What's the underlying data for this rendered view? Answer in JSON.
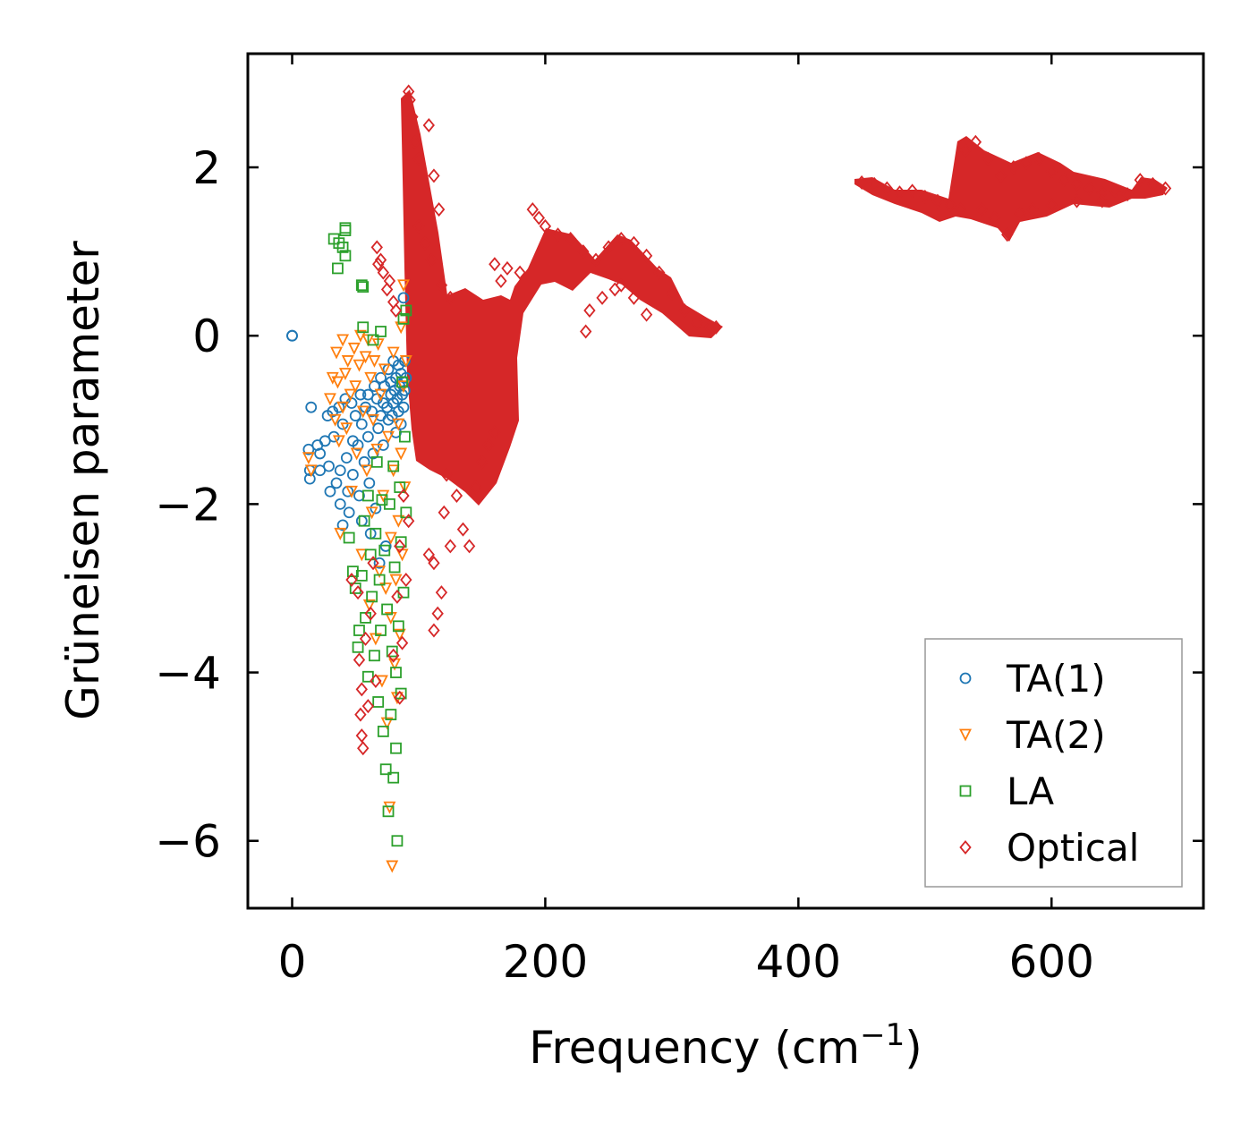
{
  "chart_data": {
    "type": "scatter",
    "title": "",
    "xlabel": "Frequency (cm",
    "xlabel_sup": "−1",
    "xlabel_end": ")",
    "ylabel": "Grüneisen parameter",
    "xlim": [
      -35,
      720
    ],
    "ylim": [
      -6.8,
      3.35
    ],
    "xticks": [
      0,
      200,
      400,
      600
    ],
    "xtick_labels": [
      "0",
      "200",
      "400",
      "600"
    ],
    "yticks": [
      -6,
      -4,
      -2,
      0,
      2
    ],
    "ytick_labels": [
      "−6",
      "−4",
      "−2",
      "0",
      "2"
    ],
    "grid": false,
    "legend_position": "lower-right",
    "series": [
      {
        "name": "TA(1)",
        "marker": "circle",
        "color": "#1f77b4",
        "points": [
          [
            0,
            0
          ],
          [
            0,
            0
          ],
          [
            15,
            -0.85
          ],
          [
            13,
            -1.35
          ],
          [
            14,
            -1.6
          ],
          [
            14,
            -1.7
          ],
          [
            20,
            -1.3
          ],
          [
            22,
            -1.4
          ],
          [
            22,
            -1.6
          ],
          [
            26,
            -1.25
          ],
          [
            28,
            -0.95
          ],
          [
            29,
            -1.55
          ],
          [
            30,
            -1.85
          ],
          [
            32,
            -0.9
          ],
          [
            33,
            -1.2
          ],
          [
            35,
            -1.75
          ],
          [
            37,
            -0.85
          ],
          [
            38,
            -1.6
          ],
          [
            38,
            -2.0
          ],
          [
            40,
            -2.25
          ],
          [
            40,
            -1.05
          ],
          [
            42,
            -0.75
          ],
          [
            43,
            -1.45
          ],
          [
            44,
            -1.85
          ],
          [
            45,
            -2.1
          ],
          [
            47,
            -0.8
          ],
          [
            48,
            -1.25
          ],
          [
            48,
            -1.65
          ],
          [
            50,
            -0.95
          ],
          [
            52,
            -1.3
          ],
          [
            53,
            -1.9
          ],
          [
            54,
            -0.7
          ],
          [
            55,
            -1.05
          ],
          [
            55,
            -2.2
          ],
          [
            57,
            -1.5
          ],
          [
            58,
            -0.85
          ],
          [
            60,
            -0.7
          ],
          [
            60,
            -1.2
          ],
          [
            61,
            -1.75
          ],
          [
            62,
            -2.35
          ],
          [
            63,
            -0.9
          ],
          [
            64,
            -1.4
          ],
          [
            65,
            -0.6
          ],
          [
            66,
            -2.05
          ],
          [
            67,
            -0.75
          ],
          [
            68,
            -1.1
          ],
          [
            69,
            -2.7
          ],
          [
            70,
            -0.5
          ],
          [
            70,
            -0.95
          ],
          [
            72,
            -1.3
          ],
          [
            72,
            -0.8
          ],
          [
            73,
            -0.6
          ],
          [
            74,
            -2.5
          ],
          [
            75,
            -0.85
          ],
          [
            76,
            -0.4
          ],
          [
            76,
            -1.0
          ],
          [
            78,
            -0.7
          ],
          [
            78,
            -0.55
          ],
          [
            79,
            -0.95
          ],
          [
            80,
            -0.3
          ],
          [
            80,
            -0.8
          ],
          [
            81,
            -0.65
          ],
          [
            82,
            -0.5
          ],
          [
            82,
            -1.15
          ],
          [
            83,
            -0.75
          ],
          [
            84,
            -0.35
          ],
          [
            84,
            -0.9
          ],
          [
            85,
            -0.6
          ],
          [
            86,
            -0.45
          ],
          [
            86,
            -1.05
          ],
          [
            87,
            -0.7
          ],
          [
            88,
            0.45
          ],
          [
            88,
            -0.55
          ],
          [
            88,
            -0.85
          ],
          [
            89,
            -0.3
          ],
          [
            89,
            -0.65
          ],
          [
            90,
            -0.5
          ]
        ]
      },
      {
        "name": "TA(2)",
        "marker": "triangle-down",
        "color": "#ff7f0e",
        "points": [
          [
            13,
            -1.45
          ],
          [
            15,
            -1.6
          ],
          [
            30,
            -0.75
          ],
          [
            32,
            -0.5
          ],
          [
            34,
            -1.0
          ],
          [
            35,
            -0.2
          ],
          [
            36,
            -0.55
          ],
          [
            37,
            -1.25
          ],
          [
            38,
            -2.35
          ],
          [
            40,
            -0.05
          ],
          [
            40,
            -0.85
          ],
          [
            42,
            -0.45
          ],
          [
            43,
            -1.1
          ],
          [
            44,
            -0.3
          ],
          [
            46,
            -0.7
          ],
          [
            47,
            -1.85
          ],
          [
            49,
            -0.15
          ],
          [
            50,
            -0.6
          ],
          [
            51,
            -1.4
          ],
          [
            53,
            -0.35
          ],
          [
            54,
            0.0
          ],
          [
            55,
            -2.6
          ],
          [
            56,
            -0.9
          ],
          [
            58,
            -0.25
          ],
          [
            59,
            -1.6
          ],
          [
            60,
            -0.05
          ],
          [
            61,
            -3.2
          ],
          [
            62,
            -0.5
          ],
          [
            63,
            -2.1
          ],
          [
            64,
            -1.0
          ],
          [
            65,
            -0.3
          ],
          [
            66,
            -3.6
          ],
          [
            67,
            -1.35
          ],
          [
            68,
            -0.1
          ],
          [
            69,
            -2.8
          ],
          [
            70,
            -0.7
          ],
          [
            71,
            -4.1
          ],
          [
            72,
            -1.9
          ],
          [
            73,
            -0.4
          ],
          [
            74,
            -3.0
          ],
          [
            75,
            -4.6
          ],
          [
            76,
            -1.2
          ],
          [
            77,
            -5.6
          ],
          [
            78,
            -2.4
          ],
          [
            78,
            -3.35
          ],
          [
            79,
            -6.3
          ],
          [
            80,
            -0.2
          ],
          [
            80,
            -1.6
          ],
          [
            81,
            -3.9
          ],
          [
            82,
            -2.9
          ],
          [
            83,
            -4.3
          ],
          [
            84,
            -1.05
          ],
          [
            84,
            -2.2
          ],
          [
            85,
            -3.55
          ],
          [
            86,
            0.1
          ],
          [
            86,
            -1.4
          ],
          [
            87,
            -2.6
          ],
          [
            88,
            0.6
          ],
          [
            88,
            -0.6
          ],
          [
            89,
            -1.8
          ],
          [
            90,
            -0.3
          ]
        ]
      },
      {
        "name": "LA",
        "marker": "square",
        "color": "#2ca02c",
        "points": [
          [
            33,
            1.15
          ],
          [
            36,
            0.8
          ],
          [
            37,
            1.1
          ],
          [
            40,
            1.05
          ],
          [
            42,
            0.95
          ],
          [
            42,
            1.25
          ],
          [
            42,
            1.28
          ],
          [
            55,
            0.6
          ],
          [
            56,
            0.58
          ],
          [
            45,
            -2.4
          ],
          [
            48,
            -2.8
          ],
          [
            50,
            -3.0
          ],
          [
            52,
            -3.7
          ],
          [
            53,
            -3.5
          ],
          [
            55,
            -2.85
          ],
          [
            56,
            0.1
          ],
          [
            57,
            -2.2
          ],
          [
            58,
            -3.35
          ],
          [
            60,
            -1.9
          ],
          [
            60,
            -4.05
          ],
          [
            62,
            -2.6
          ],
          [
            63,
            -3.1
          ],
          [
            64,
            -0.05
          ],
          [
            65,
            -3.8
          ],
          [
            66,
            -2.35
          ],
          [
            67,
            -1.5
          ],
          [
            68,
            -4.35
          ],
          [
            69,
            -2.9
          ],
          [
            70,
            0.05
          ],
          [
            70,
            -3.5
          ],
          [
            71,
            -1.95
          ],
          [
            72,
            -4.7
          ],
          [
            73,
            -2.55
          ],
          [
            74,
            -5.15
          ],
          [
            75,
            -3.25
          ],
          [
            76,
            -5.65
          ],
          [
            77,
            -2.0
          ],
          [
            78,
            -4.5
          ],
          [
            79,
            -3.75
          ],
          [
            80,
            -1.55
          ],
          [
            80,
            -5.25
          ],
          [
            81,
            -2.75
          ],
          [
            82,
            -4.0
          ],
          [
            82,
            -4.9
          ],
          [
            83,
            -6.0
          ],
          [
            84,
            -3.45
          ],
          [
            85,
            -1.8
          ],
          [
            86,
            -2.45
          ],
          [
            86,
            -4.25
          ],
          [
            87,
            -0.55
          ],
          [
            88,
            -3.05
          ],
          [
            88,
            0.2
          ],
          [
            89,
            -1.2
          ],
          [
            90,
            0.3
          ],
          [
            90,
            -2.1
          ]
        ]
      },
      {
        "name": "Optical",
        "marker": "diamond",
        "color": "#d62728",
        "points": [
          [
            47,
            -2.9
          ],
          [
            52,
            -3.05
          ],
          [
            53,
            -3.85
          ],
          [
            54,
            -4.5
          ],
          [
            55,
            -4.2
          ],
          [
            55,
            -4.75
          ],
          [
            56,
            -4.9
          ],
          [
            58,
            -3.6
          ],
          [
            60,
            -4.4
          ],
          [
            62,
            -3.3
          ],
          [
            64,
            -2.7
          ],
          [
            66,
            -4.1
          ],
          [
            67,
            1.05
          ],
          [
            68,
            0.85
          ],
          [
            70,
            0.9
          ],
          [
            72,
            0.75
          ],
          [
            75,
            0.55
          ],
          [
            77,
            0.65
          ],
          [
            80,
            0.4
          ],
          [
            80,
            -3.8
          ],
          [
            82,
            0.3
          ],
          [
            83,
            -3.1
          ],
          [
            85,
            -2.5
          ],
          [
            85,
            -4.3
          ],
          [
            87,
            -3.65
          ],
          [
            88,
            -1.9
          ],
          [
            90,
            -2.9
          ],
          [
            92,
            -2.2
          ],
          [
            108,
            -2.6
          ],
          [
            112,
            -2.7
          ],
          [
            115,
            -3.3
          ],
          [
            112,
            -3.5
          ],
          [
            118,
            -3.05
          ],
          [
            120,
            -2.1
          ],
          [
            122,
            -1.65
          ],
          [
            125,
            -2.5
          ],
          [
            130,
            -1.9
          ],
          [
            135,
            -2.3
          ],
          [
            140,
            -2.5
          ],
          [
            145,
            -1.8
          ],
          [
            150,
            -1.5
          ],
          [
            155,
            -1.3
          ],
          [
            160,
            -1.15
          ],
          [
            92,
            2.9
          ],
          [
            93,
            2.8
          ],
          [
            95,
            2.6
          ],
          [
            97,
            2.3
          ],
          [
            100,
            2.1
          ],
          [
            108,
            2.5
          ],
          [
            112,
            1.9
          ],
          [
            116,
            1.5
          ],
          [
            100,
            1.3
          ],
          [
            105,
            1.1
          ],
          [
            110,
            0.9
          ],
          [
            118,
            0.6
          ],
          [
            125,
            0.45
          ],
          [
            160,
            0.85
          ],
          [
            165,
            0.65
          ],
          [
            170,
            0.8
          ],
          [
            180,
            0.75
          ],
          [
            190,
            1.5
          ],
          [
            195,
            1.4
          ],
          [
            200,
            1.3
          ],
          [
            210,
            1.2
          ],
          [
            220,
            1.15
          ],
          [
            230,
            1.0
          ],
          [
            240,
            0.9
          ],
          [
            250,
            1.05
          ],
          [
            260,
            1.15
          ],
          [
            270,
            1.1
          ],
          [
            280,
            0.95
          ],
          [
            290,
            0.75
          ],
          [
            300,
            0.5
          ],
          [
            310,
            0.3
          ],
          [
            320,
            0.15
          ],
          [
            330,
            0.1
          ],
          [
            335,
            0.1
          ],
          [
            235,
            0.3
          ],
          [
            245,
            0.45
          ],
          [
            255,
            0.55
          ],
          [
            260,
            0.6
          ],
          [
            270,
            0.45
          ],
          [
            280,
            0.25
          ],
          [
            232,
            0.05
          ],
          [
            450,
            1.82
          ],
          [
            460,
            1.8
          ],
          [
            470,
            1.75
          ],
          [
            480,
            1.7
          ],
          [
            490,
            1.72
          ],
          [
            500,
            1.65
          ],
          [
            510,
            1.6
          ],
          [
            520,
            1.55
          ],
          [
            528,
            1.5
          ],
          [
            532,
            2.2
          ],
          [
            540,
            2.3
          ],
          [
            550,
            2.1
          ],
          [
            560,
            1.9
          ],
          [
            570,
            2.0
          ],
          [
            580,
            2.05
          ],
          [
            590,
            2.1
          ],
          [
            600,
            1.95
          ],
          [
            610,
            1.85
          ],
          [
            620,
            1.8
          ],
          [
            630,
            1.75
          ],
          [
            640,
            1.7
          ],
          [
            650,
            1.72
          ],
          [
            660,
            1.68
          ],
          [
            670,
            1.85
          ],
          [
            680,
            1.8
          ],
          [
            690,
            1.75
          ],
          [
            565,
            1.2
          ],
          [
            555,
            1.4
          ],
          [
            545,
            1.5
          ],
          [
            575,
            1.45
          ],
          [
            585,
            1.5
          ],
          [
            600,
            1.55
          ],
          [
            620,
            1.6
          ],
          [
            640,
            1.6
          ]
        ]
      }
    ]
  }
}
